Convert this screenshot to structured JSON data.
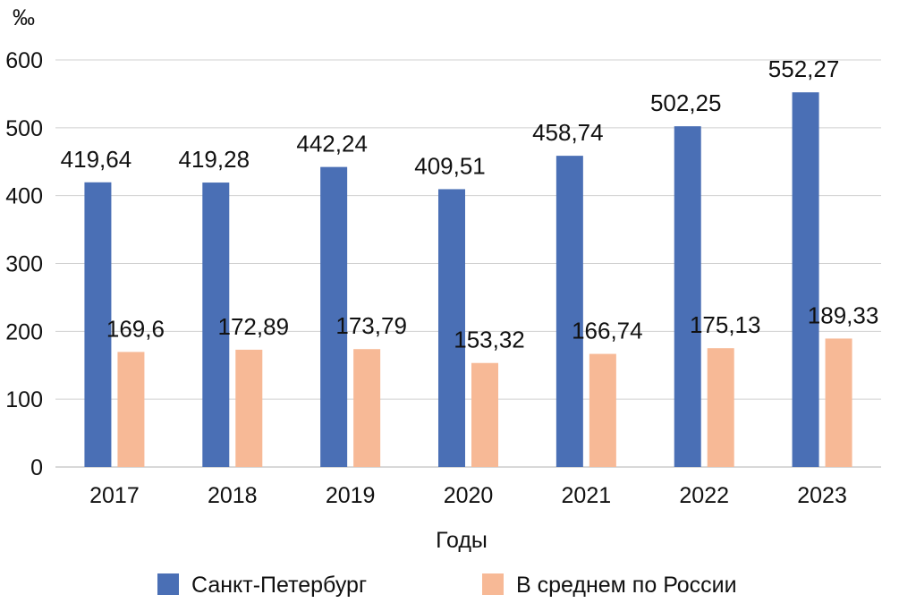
{
  "chart_data": {
    "type": "bar",
    "categories": [
      "2017",
      "2018",
      "2019",
      "2020",
      "2021",
      "2022",
      "2023"
    ],
    "series": [
      {
        "name": "Санкт-Петербург",
        "color": "#4a6fb5",
        "values": [
          419.64,
          419.28,
          442.24,
          409.51,
          458.74,
          502.25,
          552.27
        ],
        "labels": [
          "419,64",
          "419,28",
          "442,24",
          "409,51",
          "458,74",
          "502,25",
          "552,27"
        ]
      },
      {
        "name": "В среднем по России",
        "color": "#f7b996",
        "values": [
          169.6,
          172.89,
          173.79,
          153.32,
          166.74,
          175.13,
          189.33
        ],
        "labels": [
          "169,6",
          "172,89",
          "173,79",
          "153,32",
          "166,74",
          "175,13",
          "189,33"
        ]
      }
    ],
    "xlabel": "Годы",
    "ylabel": "‰",
    "ylim": [
      0,
      600
    ],
    "yticks": [
      0,
      100,
      200,
      300,
      400,
      500,
      600
    ],
    "grid": true,
    "gridColor": "#d0d0d0",
    "legend": "bottom"
  }
}
